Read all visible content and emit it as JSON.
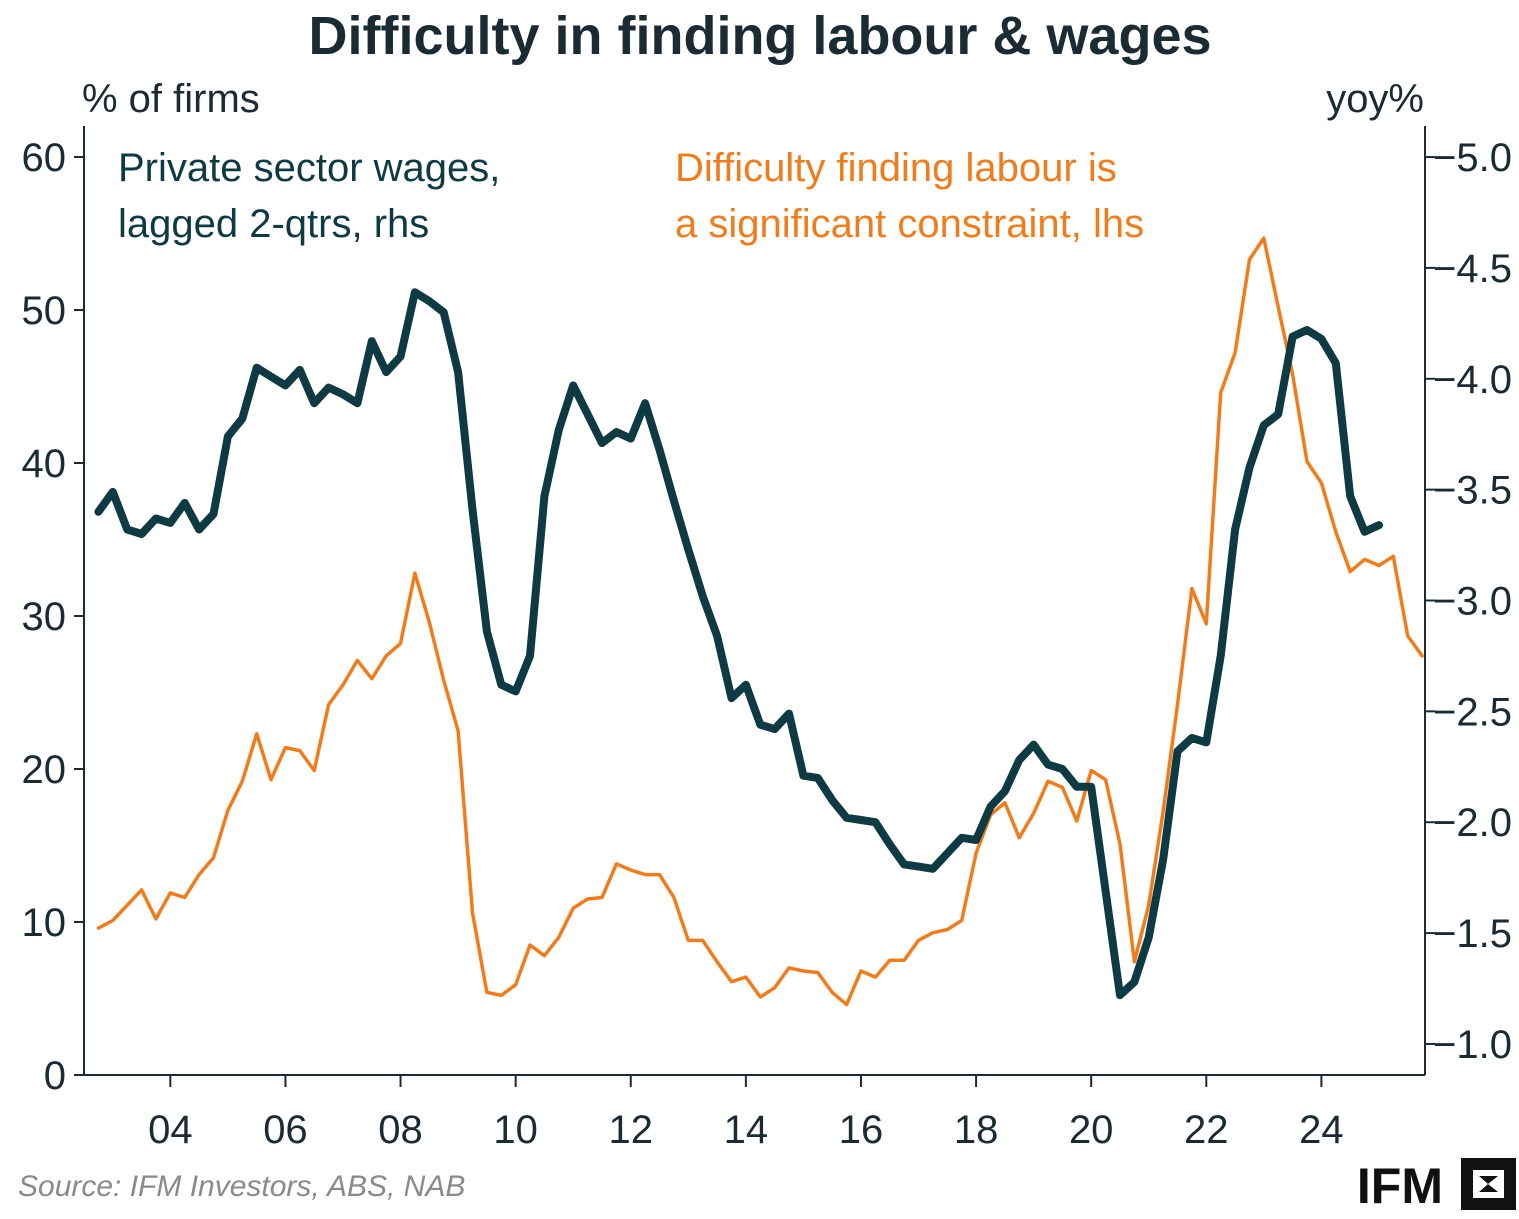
{
  "chart_data": {
    "type": "line",
    "title": "Difficulty in finding labour & wages",
    "left_axis_label": "% of firms",
    "right_axis_label": "yoy%",
    "left_ylim": [
      0,
      60
    ],
    "left_ticks": [
      "0",
      "10",
      "20",
      "30",
      "40",
      "50",
      "60"
    ],
    "right_ylim": [
      0.86,
      5.14
    ],
    "right_ticks": [
      "1.0",
      "1.5",
      "2.0",
      "2.5",
      "3.0",
      "3.5",
      "4.0",
      "4.5",
      "5.0"
    ],
    "xlim": [
      2002.5,
      2025.8
    ],
    "x_ticks": [
      "04",
      "06",
      "08",
      "10",
      "12",
      "14",
      "16",
      "18",
      "20",
      "22",
      "24"
    ],
    "grid": false,
    "series": [
      {
        "name": "Private sector wages, lagged 2-qtrs, rhs",
        "label_lines": [
          "Private sector wages,",
          "lagged 2-qtrs, rhs"
        ],
        "axis": "right",
        "color": "#0e3b43",
        "points": [
          [
            2002.75,
            3.4
          ],
          [
            2003.0,
            3.49
          ],
          [
            2003.25,
            3.32
          ],
          [
            2003.5,
            3.3
          ],
          [
            2003.75,
            3.37
          ],
          [
            2004.0,
            3.35
          ],
          [
            2004.25,
            3.44
          ],
          [
            2004.5,
            3.32
          ],
          [
            2004.75,
            3.39
          ],
          [
            2005.0,
            3.74
          ],
          [
            2005.25,
            3.82
          ],
          [
            2005.5,
            4.05
          ],
          [
            2005.75,
            4.01
          ],
          [
            2006.0,
            3.97
          ],
          [
            2006.25,
            4.04
          ],
          [
            2006.5,
            3.89
          ],
          [
            2006.75,
            3.96
          ],
          [
            2007.0,
            3.93
          ],
          [
            2007.25,
            3.89
          ],
          [
            2007.5,
            4.17
          ],
          [
            2007.75,
            4.03
          ],
          [
            2008.0,
            4.1
          ],
          [
            2008.25,
            4.39
          ],
          [
            2008.5,
            4.35
          ],
          [
            2008.75,
            4.3
          ],
          [
            2009.0,
            4.03
          ],
          [
            2009.25,
            3.41
          ],
          [
            2009.5,
            2.86
          ],
          [
            2009.75,
            2.62
          ],
          [
            2010.0,
            2.59
          ],
          [
            2010.25,
            2.75
          ],
          [
            2010.5,
            3.47
          ],
          [
            2010.75,
            3.77
          ],
          [
            2011.0,
            3.97
          ],
          [
            2011.25,
            3.84
          ],
          [
            2011.5,
            3.71
          ],
          [
            2011.75,
            3.76
          ],
          [
            2012.0,
            3.73
          ],
          [
            2012.25,
            3.89
          ],
          [
            2012.5,
            3.68
          ],
          [
            2012.75,
            3.45
          ],
          [
            2013.0,
            3.23
          ],
          [
            2013.25,
            3.02
          ],
          [
            2013.5,
            2.84
          ],
          [
            2013.75,
            2.56
          ],
          [
            2014.0,
            2.62
          ],
          [
            2014.25,
            2.44
          ],
          [
            2014.5,
            2.42
          ],
          [
            2014.75,
            2.49
          ],
          [
            2015.0,
            2.21
          ],
          [
            2015.25,
            2.2
          ],
          [
            2015.5,
            2.1
          ],
          [
            2015.75,
            2.02
          ],
          [
            2016.0,
            2.01
          ],
          [
            2016.25,
            2.0
          ],
          [
            2016.5,
            1.9
          ],
          [
            2016.75,
            1.81
          ],
          [
            2017.0,
            1.8
          ],
          [
            2017.25,
            1.79
          ],
          [
            2017.5,
            1.86
          ],
          [
            2017.75,
            1.93
          ],
          [
            2018.0,
            1.92
          ],
          [
            2018.25,
            2.07
          ],
          [
            2018.5,
            2.14
          ],
          [
            2018.75,
            2.28
          ],
          [
            2019.0,
            2.35
          ],
          [
            2019.25,
            2.26
          ],
          [
            2019.5,
            2.24
          ],
          [
            2019.75,
            2.16
          ],
          [
            2020.0,
            2.16
          ],
          [
            2020.25,
            1.69
          ],
          [
            2020.5,
            1.22
          ],
          [
            2020.75,
            1.28
          ],
          [
            2021.0,
            1.48
          ],
          [
            2021.25,
            1.83
          ],
          [
            2021.5,
            2.32
          ],
          [
            2021.75,
            2.38
          ],
          [
            2022.0,
            2.36
          ],
          [
            2022.25,
            2.75
          ],
          [
            2022.5,
            3.32
          ],
          [
            2022.75,
            3.6
          ],
          [
            2023.0,
            3.79
          ],
          [
            2023.25,
            3.84
          ],
          [
            2023.5,
            4.19
          ],
          [
            2023.75,
            4.22
          ],
          [
            2024.0,
            4.18
          ],
          [
            2024.25,
            4.07
          ],
          [
            2024.5,
            3.47
          ],
          [
            2024.75,
            3.31
          ],
          [
            2025.0,
            3.34
          ]
        ]
      },
      {
        "name": "Difficulty finding labour is a significant constraint, lhs",
        "label_lines": [
          "Difficulty finding labour is",
          "a significant constraint, lhs"
        ],
        "axis": "left",
        "color": "#f07c1c",
        "points": [
          [
            2002.75,
            9.6
          ],
          [
            2003.0,
            10.1
          ],
          [
            2003.25,
            11.1
          ],
          [
            2003.5,
            12.1
          ],
          [
            2003.75,
            10.2
          ],
          [
            2004.0,
            11.9
          ],
          [
            2004.25,
            11.6
          ],
          [
            2004.5,
            13.1
          ],
          [
            2004.75,
            14.2
          ],
          [
            2005.0,
            17.3
          ],
          [
            2005.25,
            19.2
          ],
          [
            2005.5,
            22.3
          ],
          [
            2005.75,
            19.3
          ],
          [
            2006.0,
            21.4
          ],
          [
            2006.25,
            21.2
          ],
          [
            2006.5,
            19.9
          ],
          [
            2006.75,
            24.2
          ],
          [
            2007.0,
            25.5
          ],
          [
            2007.25,
            27.1
          ],
          [
            2007.5,
            25.9
          ],
          [
            2007.75,
            27.4
          ],
          [
            2008.0,
            28.2
          ],
          [
            2008.25,
            32.8
          ],
          [
            2008.5,
            29.6
          ],
          [
            2008.75,
            25.8
          ],
          [
            2009.0,
            22.5
          ],
          [
            2009.25,
            10.6
          ],
          [
            2009.5,
            5.4
          ],
          [
            2009.75,
            5.2
          ],
          [
            2010.0,
            5.9
          ],
          [
            2010.25,
            8.5
          ],
          [
            2010.5,
            7.8
          ],
          [
            2010.75,
            9.0
          ],
          [
            2011.0,
            10.9
          ],
          [
            2011.25,
            11.5
          ],
          [
            2011.5,
            11.6
          ],
          [
            2011.75,
            13.8
          ],
          [
            2012.0,
            13.4
          ],
          [
            2012.25,
            13.1
          ],
          [
            2012.5,
            13.1
          ],
          [
            2012.75,
            11.6
          ],
          [
            2013.0,
            8.8
          ],
          [
            2013.25,
            8.8
          ],
          [
            2013.5,
            7.4
          ],
          [
            2013.75,
            6.1
          ],
          [
            2014.0,
            6.4
          ],
          [
            2014.25,
            5.1
          ],
          [
            2014.5,
            5.7
          ],
          [
            2014.75,
            7.0
          ],
          [
            2015.0,
            6.8
          ],
          [
            2015.25,
            6.7
          ],
          [
            2015.5,
            5.4
          ],
          [
            2015.75,
            4.6
          ],
          [
            2016.0,
            6.8
          ],
          [
            2016.25,
            6.4
          ],
          [
            2016.5,
            7.5
          ],
          [
            2016.75,
            7.5
          ],
          [
            2017.0,
            8.8
          ],
          [
            2017.25,
            9.3
          ],
          [
            2017.5,
            9.5
          ],
          [
            2017.75,
            10.1
          ],
          [
            2018.0,
            14.5
          ],
          [
            2018.25,
            17.0
          ],
          [
            2018.5,
            17.8
          ],
          [
            2018.75,
            15.5
          ],
          [
            2019.0,
            17.1
          ],
          [
            2019.25,
            19.2
          ],
          [
            2019.5,
            18.8
          ],
          [
            2019.75,
            16.6
          ],
          [
            2020.0,
            19.9
          ],
          [
            2020.25,
            19.3
          ],
          [
            2020.5,
            15.1
          ],
          [
            2020.75,
            7.4
          ],
          [
            2021.0,
            11.1
          ],
          [
            2021.25,
            17.2
          ],
          [
            2021.5,
            24.2
          ],
          [
            2021.75,
            31.8
          ],
          [
            2022.0,
            29.5
          ],
          [
            2022.25,
            44.6
          ],
          [
            2022.5,
            47.2
          ],
          [
            2022.75,
            53.3
          ],
          [
            2023.0,
            54.7
          ],
          [
            2023.25,
            50.2
          ],
          [
            2023.5,
            45.8
          ],
          [
            2023.75,
            40.1
          ],
          [
            2024.0,
            38.7
          ],
          [
            2024.25,
            35.5
          ],
          [
            2024.5,
            32.9
          ],
          [
            2024.75,
            33.7
          ],
          [
            2025.0,
            33.3
          ],
          [
            2025.25,
            33.9
          ],
          [
            2025.5,
            28.7
          ],
          [
            2025.75,
            27.4
          ]
        ]
      }
    ]
  },
  "source": "Source: IFM Investors, ABS, NAB",
  "logo": "IFM"
}
